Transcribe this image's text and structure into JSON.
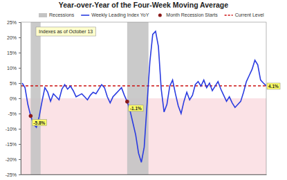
{
  "chart_data": {
    "type": "line",
    "title": "Year-over-Year of the Four-Week Moving Average",
    "x": [
      2000.6,
      2000.8,
      2001.0,
      2001.2,
      2001.4,
      2001.6,
      2001.8,
      2002.0,
      2002.2,
      2002.4,
      2002.6,
      2002.8,
      2003.0,
      2003.2,
      2003.4,
      2003.6,
      2003.8,
      2004.0,
      2004.2,
      2004.4,
      2004.6,
      2004.8,
      2005.0,
      2005.2,
      2005.4,
      2005.6,
      2005.8,
      2006.0,
      2006.2,
      2006.4,
      2006.6,
      2006.8,
      2007.0,
      2007.2,
      2007.4,
      2007.6,
      2007.8,
      2008.0,
      2008.2,
      2008.4,
      2008.6,
      2008.8,
      2009.0,
      2009.2,
      2009.4,
      2009.6,
      2009.8,
      2010.0,
      2010.2,
      2010.4,
      2010.6,
      2010.8,
      2011.0,
      2011.2,
      2011.4,
      2011.6,
      2011.8,
      2012.0,
      2012.2,
      2012.4,
      2012.6,
      2012.8,
      2013.0,
      2013.2,
      2013.4,
      2013.6,
      2013.8,
      2014.0,
      2014.2,
      2014.4,
      2014.6,
      2014.8,
      2015.0,
      2015.2,
      2015.4,
      2015.6,
      2015.8,
      2016.0,
      2016.2,
      2016.4,
      2016.6,
      2016.8,
      2017.0,
      2017.2,
      2017.4,
      2017.6,
      2017.8
    ],
    "series": [
      {
        "name": "Weekly Leading Index YoY",
        "color": "#2a3be0",
        "values": [
          5.0,
          3.5,
          -2.0,
          -5.8,
          -8.5,
          -9.5,
          -6.0,
          -1.0,
          3.5,
          2.0,
          -1.0,
          1.5,
          0.5,
          -0.5,
          3.0,
          4.5,
          3.0,
          4.0,
          2.5,
          0.5,
          1.0,
          1.5,
          0.5,
          -0.5,
          1.0,
          2.0,
          1.5,
          3.0,
          4.5,
          3.5,
          0.5,
          -1.5,
          0.5,
          1.5,
          2.5,
          3.5,
          1.0,
          -1.1,
          -4.0,
          -8.0,
          -12.0,
          -18.0,
          -21.0,
          -16.0,
          -2.0,
          12.0,
          21.0,
          22.0,
          17.0,
          3.0,
          -4.5,
          -2.0,
          4.0,
          6.0,
          1.5,
          -2.5,
          -5.0,
          -1.0,
          2.0,
          -0.5,
          1.0,
          4.5,
          5.5,
          4.0,
          6.0,
          3.5,
          5.0,
          2.5,
          4.0,
          5.5,
          3.0,
          1.0,
          -1.0,
          0.5,
          -1.5,
          -3.0,
          -2.0,
          -1.0,
          2.0,
          5.5,
          7.5,
          9.5,
          12.5,
          11.0,
          6.0,
          5.0,
          4.1
        ]
      }
    ],
    "recessions": {
      "name": "Recessions",
      "color": "#c4c4c4",
      "spans": [
        [
          2001.2,
          2001.9
        ],
        [
          2008.0,
          2009.5
        ]
      ]
    },
    "recession_starts": {
      "name": "Month Recession Starts",
      "color": "#8b1a1a",
      "points": [
        {
          "x": 2001.2,
          "value": -5.8,
          "label": "-5.8%"
        },
        {
          "x": 2008.0,
          "value": -1.1,
          "label": "-1.1%"
        }
      ]
    },
    "current_level": {
      "name": "Current Level",
      "color": "#cc1111",
      "value": 4.1,
      "label": "4.1%"
    },
    "note": "Indexes as of October 13",
    "xlim": [
      2000.5,
      2017.8
    ],
    "ylim": [
      -25,
      25
    ],
    "yticks": [
      {
        "value": -25,
        "label": "-25%"
      },
      {
        "value": -20,
        "label": "-20%"
      },
      {
        "value": -15,
        "label": "-15%"
      },
      {
        "value": -10,
        "label": "-10%"
      },
      {
        "value": -5,
        "label": "-5%"
      },
      {
        "value": 0,
        "label": "0%"
      },
      {
        "value": 5,
        "label": "5%"
      },
      {
        "value": 10,
        "label": "10%"
      },
      {
        "value": 15,
        "label": "15%"
      },
      {
        "value": 20,
        "label": "20%"
      },
      {
        "value": 25,
        "label": "25%"
      }
    ],
    "grid": false,
    "tick_labels": "y",
    "legend": "top"
  }
}
